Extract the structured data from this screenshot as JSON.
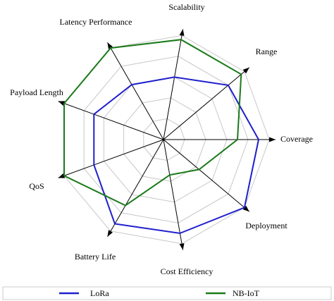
{
  "chart_data": {
    "type": "radar",
    "title": "",
    "axes": [
      "Coverage",
      "Range",
      "Scalability",
      "Latency Performance",
      "Payload Length",
      "QoS",
      "Battery Life",
      "Cost Efficiency",
      "Deployment"
    ],
    "rlim": [
      0,
      5
    ],
    "grid_levels": 5,
    "grid": true,
    "legend_placement": "bottom",
    "series": [
      {
        "name": "LoRa",
        "color": "#1f1fcc",
        "values": [
          4.5,
          4.0,
          3.0,
          3.0,
          3.5,
          3.5,
          4.6,
          4.5,
          5.0
        ]
      },
      {
        "name": "NB-IoT",
        "color": "#1a7a1a",
        "values": [
          3.5,
          4.8,
          4.8,
          5.0,
          5.0,
          5.0,
          3.6,
          1.7,
          2.2
        ]
      }
    ]
  },
  "legend": {
    "items": [
      {
        "label": "LoRa",
        "color": "#1f1fcc"
      },
      {
        "label": "NB-IoT",
        "color": "#1a7a1a"
      }
    ]
  }
}
